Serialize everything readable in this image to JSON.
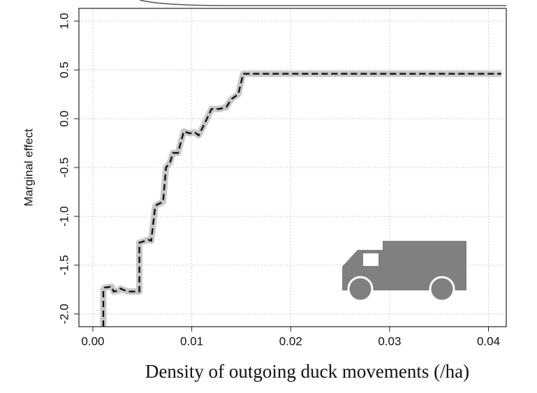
{
  "chart_data": {
    "type": "line",
    "xlabel": "Density of outgoing duck movements (/ha)",
    "ylabel": "Marginal effect",
    "x": [
      0.00106,
      0.00106,
      0.0012,
      0.0019,
      0.0021,
      0.0026,
      0.0028,
      0.0035,
      0.0042,
      0.0047,
      0.0047,
      0.0056,
      0.0059,
      0.0063,
      0.0065,
      0.0071,
      0.0074,
      0.0078,
      0.0081,
      0.0086,
      0.0092,
      0.0098,
      0.0103,
      0.0107,
      0.0113,
      0.012,
      0.0128,
      0.0135,
      0.014,
      0.0147,
      0.0152,
      0.0413
    ],
    "series": [
      {
        "color": "#111111",
        "values": [
          -2.13,
          -1.75,
          -1.73,
          -1.72,
          -1.77,
          -1.76,
          -1.74,
          -1.77,
          -1.77,
          -1.77,
          -1.27,
          -1.24,
          -1.25,
          -0.9,
          -0.88,
          -0.85,
          -0.5,
          -0.45,
          -0.35,
          -0.35,
          -0.13,
          -0.15,
          -0.14,
          -0.17,
          -0.05,
          0.1,
          0.1,
          0.12,
          0.2,
          0.25,
          0.46,
          0.46
        ]
      }
    ],
    "xlim": [
      -0.00141,
      0.0418
    ],
    "ylim": [
      -2.13,
      1.13
    ],
    "xticks": [
      {
        "value": 0,
        "label": "0.00"
      },
      0.01,
      0.02,
      0.03,
      0.04
    ],
    "yticks": [
      {
        "value": -2,
        "label": "-2.0"
      },
      -1.5,
      {
        "value": -1,
        "label": "-1.0"
      },
      -0.5,
      {
        "value": 0,
        "label": "0.0"
      },
      0.5,
      {
        "value": 1,
        "label": "1.0"
      }
    ],
    "grid": true
  }
}
